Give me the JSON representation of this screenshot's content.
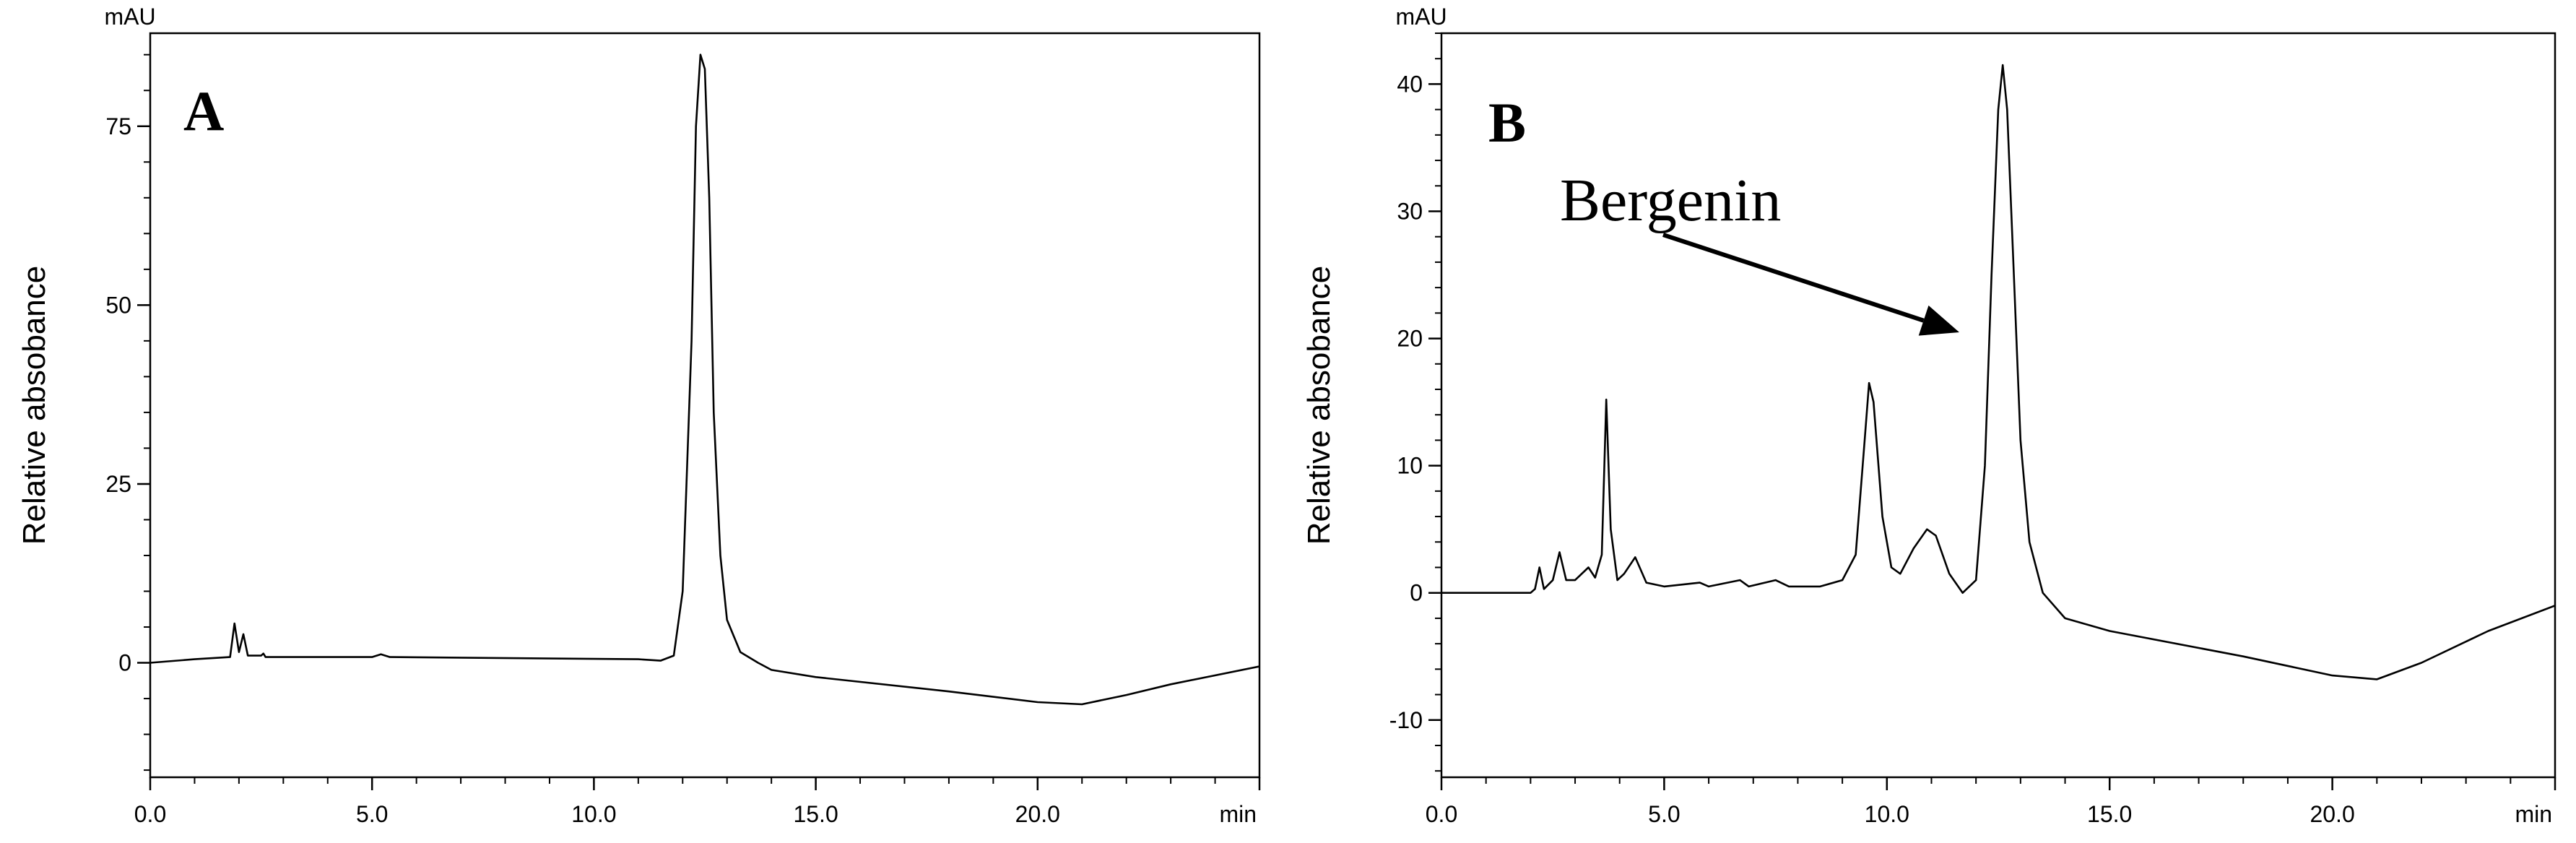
{
  "chart_data": [
    {
      "type": "line",
      "panel_label": "A",
      "y_unit": "mAU",
      "x_unit": "min",
      "ylabel": "Relative absobance",
      "xlim": [
        0,
        25
      ],
      "ylim": [
        -16,
        88
      ],
      "x_ticks": [
        0.0,
        5.0,
        10.0,
        15.0,
        20.0
      ],
      "x_tick_labels": [
        "0.0",
        "5.0",
        "10.0",
        "15.0",
        "20.0"
      ],
      "y_ticks": [
        0,
        25,
        50,
        75
      ],
      "y_tick_labels": [
        "0",
        "25",
        "50",
        "75"
      ],
      "grid": false,
      "series": [
        {
          "color": "#000000",
          "points": [
            [
              0.0,
              0.0
            ],
            [
              1.0,
              0.5
            ],
            [
              1.8,
              0.8
            ],
            [
              1.9,
              5.5
            ],
            [
              2.0,
              1.5
            ],
            [
              2.1,
              4.0
            ],
            [
              2.2,
              1.0
            ],
            [
              2.5,
              1.0
            ],
            [
              2.55,
              1.3
            ],
            [
              2.6,
              0.8
            ],
            [
              5.0,
              0.8
            ],
            [
              5.2,
              1.2
            ],
            [
              5.4,
              0.8
            ],
            [
              11.0,
              0.5
            ],
            [
              11.5,
              0.3
            ],
            [
              11.8,
              1.0
            ],
            [
              12.0,
              10.0
            ],
            [
              12.2,
              45.0
            ],
            [
              12.3,
              75.0
            ],
            [
              12.4,
              85.0
            ],
            [
              12.5,
              83.0
            ],
            [
              12.6,
              65.0
            ],
            [
              12.7,
              35.0
            ],
            [
              12.85,
              15.0
            ],
            [
              13.0,
              6.0
            ],
            [
              13.3,
              1.5
            ],
            [
              13.7,
              0.0
            ],
            [
              14.0,
              -1.0
            ],
            [
              15.0,
              -2.0
            ],
            [
              18.0,
              -4.0
            ],
            [
              20.0,
              -5.5
            ],
            [
              21.0,
              -5.8
            ],
            [
              22.0,
              -4.5
            ],
            [
              23.0,
              -3.0
            ],
            [
              25.0,
              -0.5
            ]
          ]
        }
      ]
    },
    {
      "type": "line",
      "panel_label": "B",
      "y_unit": "mAU",
      "x_unit": "min",
      "ylabel": "Relative absobance",
      "annotation": "Bergenin",
      "xlim": [
        0,
        25
      ],
      "ylim": [
        -14.5,
        44
      ],
      "x_ticks": [
        0.0,
        5.0,
        10.0,
        15.0,
        20.0
      ],
      "x_tick_labels": [
        "0.0",
        "5.0",
        "10.0",
        "15.0",
        "20.0"
      ],
      "y_ticks": [
        -10,
        0,
        10,
        20,
        30,
        40
      ],
      "y_tick_labels": [
        "-10",
        "0",
        "10",
        "20",
        "30",
        "40"
      ],
      "grid": false,
      "series": [
        {
          "color": "#000000",
          "points": [
            [
              0.0,
              0.0
            ],
            [
              2.0,
              0.0
            ],
            [
              2.1,
              0.3
            ],
            [
              2.2,
              2.0
            ],
            [
              2.3,
              0.3
            ],
            [
              2.5,
              1.0
            ],
            [
              2.65,
              3.2
            ],
            [
              2.8,
              1.0
            ],
            [
              3.0,
              1.0
            ],
            [
              3.3,
              2.0
            ],
            [
              3.45,
              1.2
            ],
            [
              3.6,
              3.0
            ],
            [
              3.7,
              15.2
            ],
            [
              3.8,
              5.0
            ],
            [
              3.95,
              1.0
            ],
            [
              4.1,
              1.5
            ],
            [
              4.35,
              2.8
            ],
            [
              4.6,
              0.8
            ],
            [
              5.0,
              0.5
            ],
            [
              5.8,
              0.8
            ],
            [
              6.0,
              0.5
            ],
            [
              6.7,
              1.0
            ],
            [
              6.9,
              0.5
            ],
            [
              7.5,
              1.0
            ],
            [
              7.8,
              0.5
            ],
            [
              8.5,
              0.5
            ],
            [
              9.0,
              1.0
            ],
            [
              9.3,
              3.0
            ],
            [
              9.5,
              12.0
            ],
            [
              9.6,
              16.5
            ],
            [
              9.7,
              15.0
            ],
            [
              9.9,
              6.0
            ],
            [
              10.1,
              2.0
            ],
            [
              10.3,
              1.5
            ],
            [
              10.6,
              3.5
            ],
            [
              10.9,
              5.0
            ],
            [
              11.1,
              4.5
            ],
            [
              11.4,
              1.5
            ],
            [
              11.7,
              0.0
            ],
            [
              12.0,
              1.0
            ],
            [
              12.2,
              10.0
            ],
            [
              12.35,
              25.0
            ],
            [
              12.5,
              38.0
            ],
            [
              12.6,
              41.5
            ],
            [
              12.7,
              38.0
            ],
            [
              12.85,
              25.0
            ],
            [
              13.0,
              12.0
            ],
            [
              13.2,
              4.0
            ],
            [
              13.5,
              0.0
            ],
            [
              14.0,
              -2.0
            ],
            [
              15.0,
              -3.0
            ],
            [
              18.0,
              -5.0
            ],
            [
              20.0,
              -6.5
            ],
            [
              21.0,
              -6.8
            ],
            [
              22.0,
              -5.5
            ],
            [
              23.5,
              -3.0
            ],
            [
              25.0,
              -1.0
            ]
          ]
        }
      ]
    }
  ]
}
